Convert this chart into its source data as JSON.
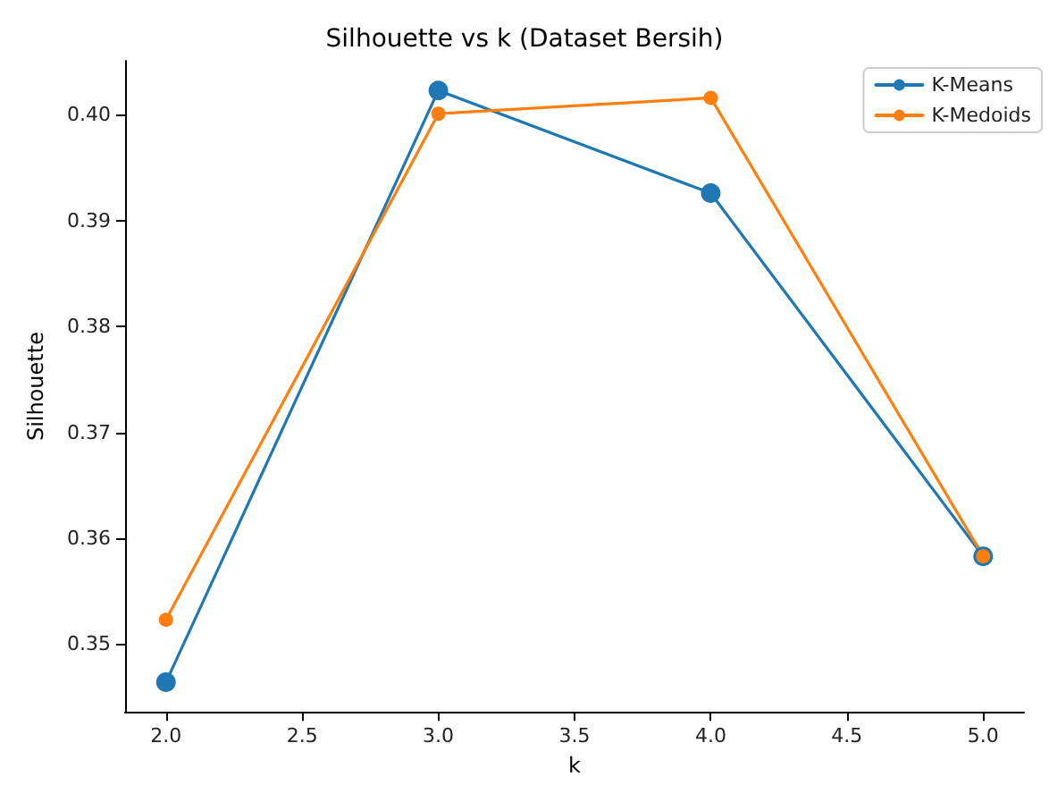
{
  "chart_data": {
    "type": "line",
    "title": "Silhouette vs k (Dataset Bersih)",
    "xlabel": "k",
    "ylabel": "Silhouette",
    "x": [
      2,
      3,
      4,
      5
    ],
    "series": [
      {
        "name": "K-Means",
        "color": "#1f77b4",
        "values": [
          0.3464,
          0.4023,
          0.3926,
          0.3583
        ]
      },
      {
        "name": "K-Medoids",
        "color": "#ff7f0e",
        "values": [
          0.3523,
          0.4001,
          0.4016,
          0.3583
        ]
      }
    ],
    "xlim": [
      1.85,
      5.15
    ],
    "xticks": [
      {
        "value": 2,
        "label": "2.0"
      },
      {
        "value": 2.5,
        "label": "2.5"
      },
      {
        "value": 3,
        "label": "3.0"
      },
      {
        "value": 3.5,
        "label": "3.5"
      },
      {
        "value": 4,
        "label": "4.0"
      },
      {
        "value": 4.5,
        "label": "4.5"
      },
      {
        "value": 5,
        "label": "5.0"
      }
    ],
    "ylim": [
      0.3436,
      0.4051
    ],
    "yticks": [
      {
        "value": 0.35,
        "label": "0.35"
      },
      {
        "value": 0.36,
        "label": "0.36"
      },
      {
        "value": 0.37,
        "label": "0.37"
      },
      {
        "value": 0.38,
        "label": "0.38"
      },
      {
        "value": 0.39,
        "label": "0.39"
      },
      {
        "value": 0.4,
        "label": "0.40"
      }
    ],
    "grid": false,
    "legend": "top right",
    "marker": "circle",
    "line_style": "solid"
  }
}
